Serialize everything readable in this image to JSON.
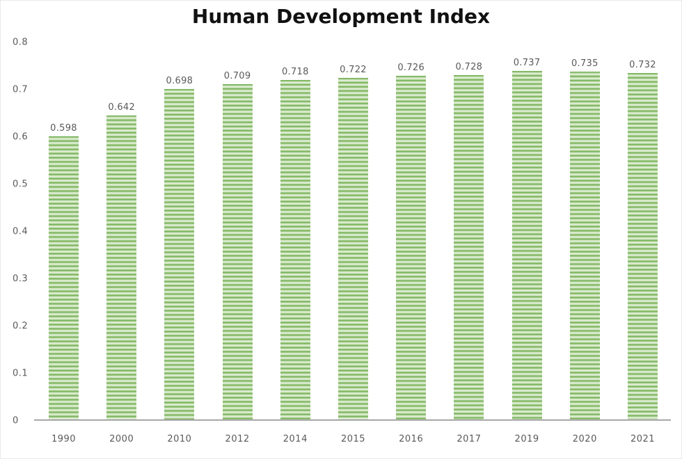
{
  "chart_data": {
    "type": "bar",
    "title": "Human Development Index",
    "categories": [
      "1990",
      "2000",
      "2010",
      "2012",
      "2014",
      "2015",
      "2016",
      "2017",
      "2019",
      "2020",
      "2021"
    ],
    "values": [
      0.598,
      0.642,
      0.698,
      0.709,
      0.718,
      0.722,
      0.726,
      0.728,
      0.737,
      0.735,
      0.732
    ],
    "value_labels": [
      "0.598",
      "0.642",
      "0.698",
      "0.709",
      "0.718",
      "0.722",
      "0.726",
      "0.728",
      "0.737",
      "0.735",
      "0.732"
    ],
    "xlabel": "",
    "ylabel": "",
    "ylim": [
      0,
      0.8
    ],
    "ytick_labels": [
      "0",
      "0.1",
      "0.2",
      "0.3",
      "0.4",
      "0.5",
      "0.6",
      "0.7",
      "0.8"
    ],
    "grid": false,
    "legend": null,
    "colors": {
      "bar_stripe_dark": "#77b058",
      "bar_stripe_light": "#b9d9a5",
      "bar_stripe_pale": "#e6f1de",
      "axis": "#a8a8a8",
      "tick_label": "#595959",
      "data_label": "#595959",
      "title": "#111111",
      "background": "#ffffff"
    }
  }
}
